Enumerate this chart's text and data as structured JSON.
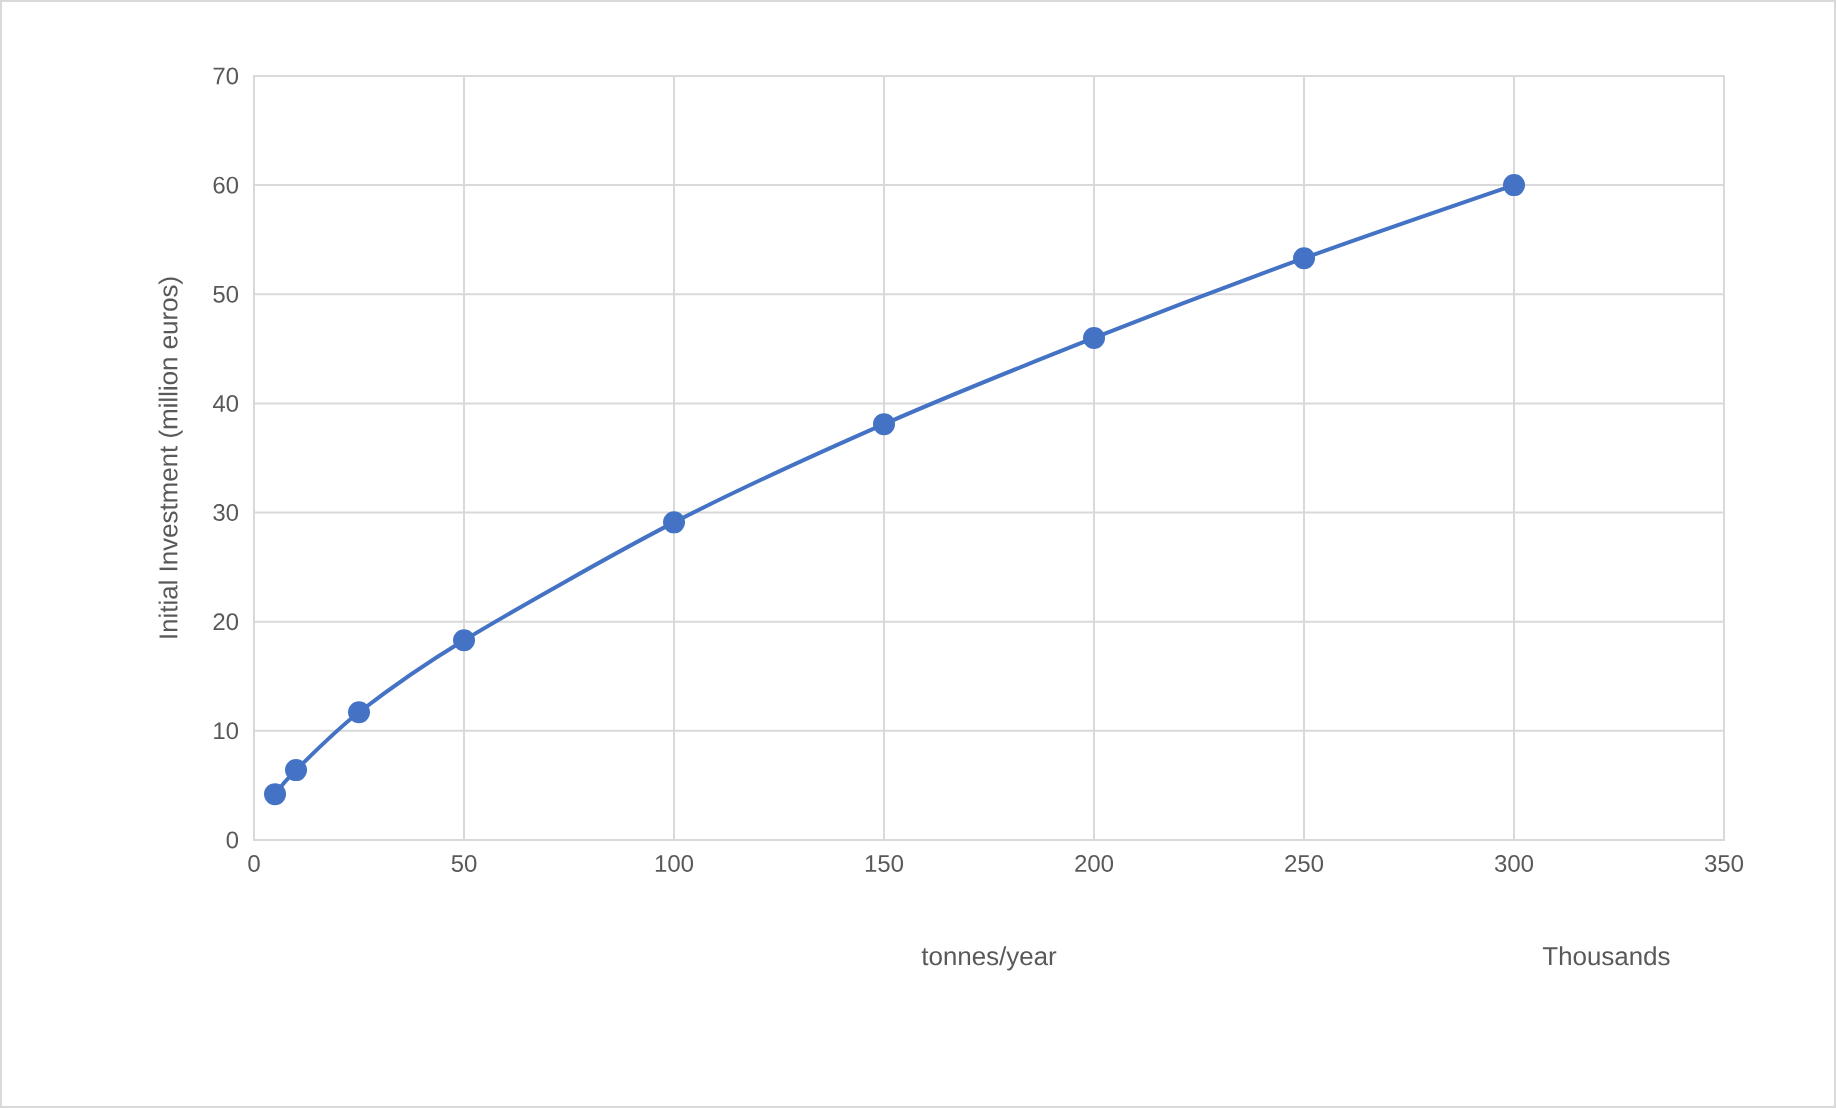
{
  "chart_data": {
    "type": "line",
    "xlabel": "tonnes/year",
    "ylabel": "Initial Investment (million euros)",
    "annotations": [
      "Thousands"
    ],
    "x": [
      5,
      10,
      25,
      50,
      100,
      150,
      200,
      250,
      300
    ],
    "series": [
      {
        "color": "#4472c4",
        "values": [
          4.2,
          6.4,
          11.7,
          18.3,
          29.1,
          38.1,
          46,
          53.3,
          60
        ]
      }
    ],
    "xlim": [
      0,
      350
    ],
    "ylim": [
      0,
      70
    ],
    "xticks": [
      0,
      50,
      100,
      150,
      200,
      250,
      300,
      350
    ],
    "yticks": [
      0,
      10,
      20,
      30,
      40,
      50,
      60,
      70
    ],
    "grid": true,
    "marker": "circle"
  }
}
